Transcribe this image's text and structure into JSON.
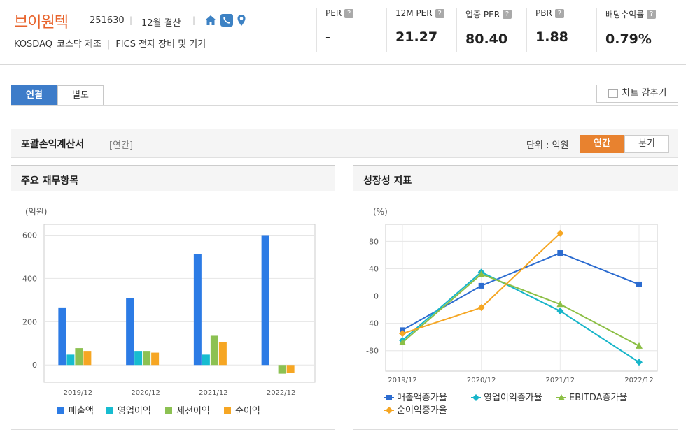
{
  "company": {
    "name": "브이원텍",
    "code": "251630",
    "fiscal": "12월 결산",
    "market": "KOSDAQ",
    "category": "코스닥 제조",
    "industry": "FICS 전자 장비 및 기기",
    "icons": [
      "home-icon",
      "phone-icon",
      "location-pin-icon"
    ]
  },
  "metrics": [
    {
      "label": "PER",
      "value": "-"
    },
    {
      "label": "12M PER",
      "value": "21.27"
    },
    {
      "label": "업종 PER",
      "value": "80.40"
    },
    {
      "label": "PBR",
      "value": "1.88"
    },
    {
      "label": "배당수익률",
      "value": "0.79%"
    }
  ],
  "help_glyph": "?",
  "tabs": {
    "consolidated": "연결",
    "separate": "별도"
  },
  "hide_chart": "차트 감추기",
  "section": {
    "title": "포괄손익계산서",
    "tag": "[연간]",
    "unit": "단위 : 억원",
    "annual": "연간",
    "quarterly": "분기"
  },
  "panel_left": {
    "title": "주요 재무항목"
  },
  "panel_right": {
    "title": "성장성 지표"
  },
  "chart_data": [
    {
      "type": "bar",
      "unit_label": "(억원)",
      "categories": [
        "2019/12",
        "2020/12",
        "2021/12",
        "2022/12"
      ],
      "ylim": [
        -80,
        650
      ],
      "yticks": [
        0,
        200,
        400,
        600
      ],
      "series": [
        {
          "name": "매출액",
          "color": "#2c7be5",
          "values": [
            266,
            310,
            512,
            600
          ]
        },
        {
          "name": "영업이익",
          "color": "#17bcd0",
          "values": [
            48,
            65,
            48,
            null
          ]
        },
        {
          "name": "세전이익",
          "color": "#8cc152",
          "values": [
            78,
            65,
            135,
            -40
          ]
        },
        {
          "name": "순이익",
          "color": "#f6a623",
          "values": [
            65,
            57,
            105,
            -38
          ]
        }
      ],
      "legend_position": "bottom"
    },
    {
      "type": "line",
      "unit_label": "(%)",
      "categories": [
        "2019/12",
        "2020/12",
        "2021/12",
        "2022/12"
      ],
      "ylim": [
        -110,
        105
      ],
      "yticks": [
        80,
        40,
        0,
        -40,
        -80
      ],
      "series": [
        {
          "name": "매출액증가율",
          "color": "#2c6cd0",
          "marker": "square",
          "values": [
            -50,
            15,
            63,
            17
          ]
        },
        {
          "name": "영업이익증가율",
          "color": "#17b5c9",
          "marker": "diamond",
          "values": [
            -65,
            35,
            -22,
            -97
          ]
        },
        {
          "name": "EBITDA증가율",
          "color": "#8cbf45",
          "marker": "triangle",
          "values": [
            -68,
            32,
            -12,
            -73
          ]
        },
        {
          "name": "순이익증가율",
          "color": "#f5a623",
          "marker": "diamond",
          "values": [
            -55,
            -17,
            92,
            null
          ]
        }
      ],
      "legend_position": "bottom"
    }
  ]
}
